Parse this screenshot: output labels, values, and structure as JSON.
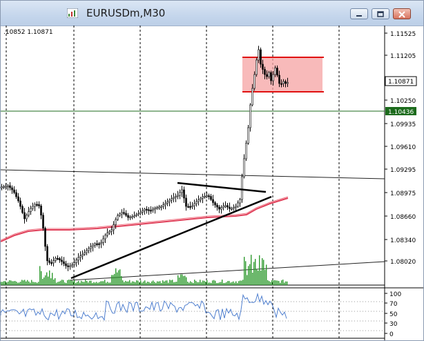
{
  "window": {
    "title": "EURUSDm,M30",
    "icon": "chart-window-icon",
    "buttons": [
      "minimize-icon",
      "restore-icon",
      "close-icon"
    ],
    "close_button_color": "#d8735e"
  },
  "chart": {
    "ohlc_readout": ".10852 1.10871",
    "price_labels": [
      "1.11525",
      "1.11205",
      "1.10871",
      "1.10570",
      "1.10436",
      "1.10250",
      "1.09935",
      "1.09610",
      "1.09295",
      "1.08975",
      "1.08660",
      "1.08340",
      "1.08020"
    ],
    "current_price": "1.10871",
    "horizontal_line_price": "1.10436",
    "horizontal_line_color": "#1c6b1c",
    "zone_color": "#f5a3a3",
    "zone_border_color": "#e01010",
    "moving_average_color": "#e0405a",
    "volume_color": "#2e9a2e",
    "indicator_color": "#4f7fcf"
  },
  "indicator": {
    "levels": [
      "100",
      "70",
      "50",
      "30",
      "0"
    ]
  }
}
